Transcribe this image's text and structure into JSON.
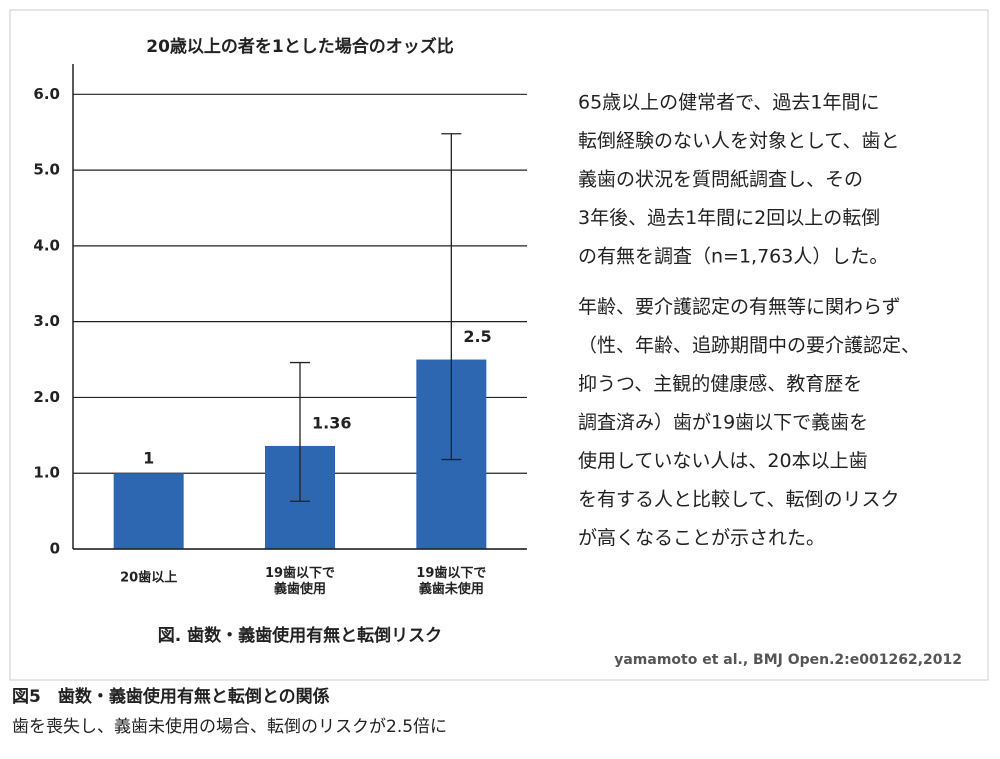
{
  "chart_data": {
    "type": "bar",
    "title": "20歳以上の者を1とした場合のオッズ比",
    "categories": [
      "20歯以上",
      "19歯以下で\n義歯使用",
      "19歯以下で\n義歯未使用"
    ],
    "values": [
      1,
      1.36,
      2.5
    ],
    "ci_low": [
      null,
      0.63,
      1.18
    ],
    "ci_high": [
      null,
      2.46,
      5.48
    ],
    "color": "#2e67b1",
    "ylim": [
      0,
      6.4
    ],
    "yticks": [
      0,
      {
        "value": 1,
        "label": "1.0"
      },
      {
        "value": 2,
        "label": "2.0"
      },
      {
        "value": 3,
        "label": "3.0"
      },
      {
        "value": 4,
        "label": "4.0"
      },
      {
        "value": 5,
        "label": "5.0"
      },
      {
        "value": 6,
        "label": "6.0"
      }
    ],
    "grid": true,
    "caption": "図. 歯数・義歯使用有無と転倒リスク"
  },
  "description": [
    [
      "65歳以上の健常者で、過去1年間に",
      "転倒経験のない人を対象として、歯と",
      "義歯の状況を質問紙調査し、その",
      "3年後、過去1年間に2回以上の転倒",
      "の有無を調査（n=1,763人）した。"
    ],
    [
      "年齢、要介護認定の有無等に関わらず",
      "（性、年齢、追跡期間中の要介護認定、",
      "抑うつ、主観的健康感、教育歴を",
      "調査済み）歯が19歯以下で義歯を",
      "使用していない人は、20本以上歯",
      "を有する人と比較して、転倒のリスク",
      "が高くなることが示された。"
    ]
  ],
  "source": "yamamoto et al., BMJ Open.2:e001262,2012",
  "figure": {
    "title": "図5　歯数・義歯使用有無と転倒との関係",
    "subtitle": "歯を喪失し、義歯未使用の場合、転倒のリスクが2.5倍に"
  }
}
